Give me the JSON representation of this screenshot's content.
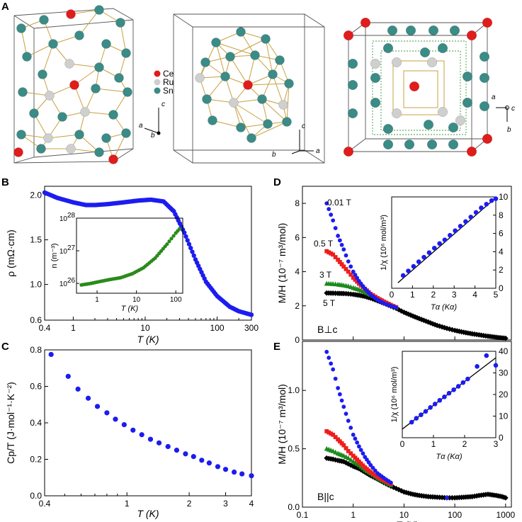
{
  "panels": {
    "A": {
      "letter": "A",
      "legend": [
        {
          "label": "Ce",
          "color": "#e01c1c"
        },
        {
          "label": "Ru",
          "color": "#cfcfcf"
        },
        {
          "label": "Sn",
          "color": "#3b8b86"
        }
      ],
      "axes_labels": {
        "a": "a",
        "b": "b",
        "c": "c"
      }
    },
    "B": {
      "letter": "B"
    },
    "C": {
      "letter": "C"
    },
    "D": {
      "letter": "D",
      "field_label": "B⊥c"
    },
    "E": {
      "letter": "E",
      "field_label": "B||c"
    }
  },
  "colors": {
    "blue": "#1c1cf0",
    "red": "#f01c1c",
    "green": "#1c8a1c",
    "black": "#000000",
    "olive": "#2a8a1a",
    "fit_line": "#000000"
  },
  "chart_data": [
    {
      "id": "B",
      "type": "scatter",
      "xscale": "log",
      "xlim": [
        0.4,
        300
      ],
      "ylim": [
        0.6,
        2.1
      ],
      "xticks": [
        "0.4",
        "1",
        "10",
        "100",
        "300"
      ],
      "yticks": [
        "0.6",
        "1.0",
        "1.5",
        "2.0"
      ],
      "xlabel": "T (K)",
      "ylabel": "ρ (mΩ·cm)",
      "series": [
        {
          "name": "rho",
          "color": "#1c1cf0",
          "x": [
            0.4,
            0.6,
            1.0,
            1.5,
            2,
            3,
            5,
            8,
            12,
            18,
            25,
            35,
            50,
            70,
            100,
            150,
            200,
            300
          ],
          "y": [
            2.03,
            1.97,
            1.92,
            1.89,
            1.89,
            1.9,
            1.92,
            1.94,
            1.95,
            1.93,
            1.82,
            1.58,
            1.28,
            1.03,
            0.87,
            0.75,
            0.7,
            0.66
          ]
        }
      ],
      "inset": {
        "xscale": "log",
        "yscale": "log",
        "xlim": [
          0.3,
          150
        ],
        "ylim": [
          5e+25,
          1e+28
        ],
        "xticks": [
          "1",
          "10",
          "100"
        ],
        "yticks": [
          "10",
          "10",
          "10"
        ],
        "ytick_exps": [
          "26",
          "27",
          "28"
        ],
        "xlabel": "T (K)",
        "ylabel": "n (m⁻³)",
        "series": [
          {
            "name": "n",
            "color": "#2a8a1a",
            "x": [
              0.4,
              0.7,
              1,
              2,
              4,
              8,
              15,
              30,
              60,
              100,
              140
            ],
            "y": [
              9e+25,
              1e+26,
              1.1e+26,
              1.3e+26,
              1.5e+26,
              2e+26,
              3e+26,
              6e+26,
              1.6e+27,
              3.5e+27,
              5.5e+27
            ]
          }
        ]
      }
    },
    {
      "id": "C",
      "type": "scatter",
      "xscale": "log",
      "xlim": [
        0.4,
        4
      ],
      "ylim": [
        0,
        0.8
      ],
      "xticks": [
        "0.4",
        "1",
        "2",
        "3",
        "4"
      ],
      "yticks": [
        "0.0",
        "0.2",
        "0.4",
        "0.6",
        "0.8"
      ],
      "xlabel": "T (K)",
      "ylabel": "Cp/T (J·mol⁻¹·K⁻²)",
      "series": [
        {
          "name": "C/T",
          "color": "#1c1cf0",
          "x": [
            0.43,
            0.52,
            0.58,
            0.65,
            0.72,
            0.8,
            0.88,
            0.97,
            1.07,
            1.18,
            1.3,
            1.43,
            1.58,
            1.74,
            1.92,
            2.1,
            2.3,
            2.5,
            2.75,
            3.0,
            3.3,
            3.6,
            4.0
          ],
          "y": [
            0.775,
            0.655,
            0.585,
            0.535,
            0.49,
            0.455,
            0.42,
            0.39,
            0.36,
            0.335,
            0.31,
            0.29,
            0.27,
            0.25,
            0.23,
            0.215,
            0.195,
            0.18,
            0.16,
            0.145,
            0.13,
            0.12,
            0.11
          ]
        }
      ]
    },
    {
      "id": "D",
      "type": "scatter",
      "xscale": "log",
      "xlim": [
        0.1,
        1300
      ],
      "ylim": [
        0,
        9
      ],
      "xticks": [],
      "yticks": [
        "0",
        "2",
        "4",
        "6",
        "8"
      ],
      "xlabel": "",
      "ylabel": "M/H (10⁻⁷ m³/mol)",
      "series": [
        {
          "name": "0.01 T",
          "color": "#1c1cf0",
          "marker": "circle",
          "x": [
            0.3,
            0.4,
            0.5,
            0.65,
            0.8,
            1.0,
            1.3,
            1.7,
            2.2,
            3,
            4,
            5.5,
            7
          ],
          "y": [
            8.0,
            7.0,
            6.1,
            5.3,
            4.6,
            4.0,
            3.45,
            3.0,
            2.65,
            2.35,
            2.15,
            2.0,
            1.9
          ]
        },
        {
          "name": "0.5 T",
          "color": "#f01c1c",
          "marker": "square",
          "x": [
            0.3,
            0.4,
            0.5,
            0.65,
            0.8,
            1.0,
            1.3,
            1.7,
            2.2,
            3,
            4,
            5.5,
            7
          ],
          "y": [
            5.2,
            5.0,
            4.7,
            4.3,
            4.0,
            3.65,
            3.3,
            3.0,
            2.7,
            2.45,
            2.25,
            2.05,
            1.92
          ]
        },
        {
          "name": "3 T",
          "color": "#1c8a1c",
          "marker": "triangle",
          "x": [
            0.3,
            0.4,
            0.5,
            0.65,
            0.8,
            1.0,
            1.3,
            1.7,
            2.2,
            3,
            4,
            5.5,
            7
          ],
          "y": [
            3.3,
            3.28,
            3.25,
            3.2,
            3.15,
            3.05,
            2.95,
            2.8,
            2.65,
            2.45,
            2.25,
            2.05,
            1.9
          ]
        },
        {
          "name": "5 T",
          "color": "#000000",
          "marker": "diamond",
          "x": [
            0.3,
            0.4,
            0.5,
            0.65,
            0.8,
            1.0,
            1.3,
            1.7,
            2.2,
            3,
            4,
            5.5,
            7,
            10,
            15,
            20,
            30,
            45,
            70,
            100,
            150,
            220,
            300,
            450,
            650,
            850,
            1000
          ],
          "y": [
            2.75,
            2.74,
            2.73,
            2.72,
            2.7,
            2.67,
            2.62,
            2.55,
            2.45,
            2.3,
            2.15,
            1.98,
            1.85,
            1.62,
            1.4,
            1.25,
            1.05,
            0.85,
            0.68,
            0.56,
            0.45,
            0.36,
            0.3,
            0.22,
            0.16,
            0.12,
            0.1
          ]
        }
      ],
      "legend_labels": [
        "0.01 T",
        "0.5 T",
        "3 T",
        "5 T"
      ],
      "inset": {
        "xlim": [
          0,
          5
        ],
        "ylim": [
          0,
          10
        ],
        "xticks": [
          "0",
          "1",
          "2",
          "3",
          "4",
          "5"
        ],
        "yticks": [
          "0",
          "2",
          "4",
          "6",
          "8",
          "10"
        ],
        "xlabel": "Tα (Kα)",
        "ylabel": "1/χ (10⁶ mol/m³)",
        "fit": {
          "x": [
            0.3,
            5.0
          ],
          "y": [
            0.6,
            9.9
          ]
        },
        "series": [
          {
            "name": "1/chi",
            "color": "#1c1cf0",
            "x": [
              0.55,
              0.8,
              1.05,
              1.3,
              1.55,
              1.8,
              2.05,
              2.3,
              2.55,
              2.8,
              3.05,
              3.3,
              3.55,
              3.8,
              4.05,
              4.3,
              4.55,
              4.8,
              5.0
            ],
            "y": [
              1.4,
              1.9,
              2.4,
              2.9,
              3.4,
              3.9,
              4.4,
              4.9,
              5.3,
              5.8,
              6.3,
              6.8,
              7.3,
              7.8,
              8.3,
              8.8,
              9.2,
              9.6,
              9.8
            ]
          }
        ]
      }
    },
    {
      "id": "E",
      "type": "scatter",
      "xscale": "log",
      "xlim": [
        0.1,
        1300
      ],
      "ylim": [
        0,
        1.42
      ],
      "xticks": [
        "0.1",
        "1",
        "10",
        "100",
        "1000"
      ],
      "yticks": [
        "0.0",
        "0.5",
        "1.0"
      ],
      "xlabel": "T (K)",
      "ylabel": "M/H (10⁻⁷ m³/mol)",
      "series": [
        {
          "name": "0.01 T",
          "color": "#1c1cf0",
          "marker": "circle",
          "x": [
            0.3,
            0.4,
            0.5,
            0.65,
            0.8,
            1.0,
            1.3,
            1.7,
            2.2,
            3,
            4,
            5.5,
            70
          ],
          "y": [
            1.33,
            1.18,
            1.02,
            0.86,
            0.74,
            0.62,
            0.52,
            0.43,
            0.36,
            0.29,
            0.25,
            0.21,
            0.08
          ]
        },
        {
          "name": "0.5 T",
          "color": "#f01c1c",
          "marker": "square",
          "x": [
            0.3,
            0.4,
            0.5,
            0.65,
            0.8,
            1.0,
            1.3,
            1.7,
            2.2,
            3,
            4,
            5.5
          ],
          "y": [
            0.65,
            0.62,
            0.58,
            0.53,
            0.48,
            0.44,
            0.39,
            0.34,
            0.3,
            0.26,
            0.23,
            0.2
          ]
        },
        {
          "name": "3 T",
          "color": "#1c8a1c",
          "marker": "triangle",
          "x": [
            0.3,
            0.4,
            0.5,
            0.65,
            0.8,
            1.0,
            1.3,
            1.7,
            2.2,
            3,
            4,
            5.5
          ],
          "y": [
            0.5,
            0.48,
            0.46,
            0.44,
            0.42,
            0.39,
            0.36,
            0.32,
            0.29,
            0.25,
            0.22,
            0.19
          ]
        },
        {
          "name": "5 T",
          "color": "#000000",
          "marker": "diamond",
          "x": [
            0.3,
            0.4,
            0.5,
            0.65,
            0.8,
            1.0,
            1.3,
            1.7,
            2.2,
            3,
            4,
            5.5,
            7,
            10,
            15,
            20,
            30,
            45,
            70,
            100,
            150,
            220,
            300,
            450,
            650,
            850,
            1000
          ],
          "y": [
            0.42,
            0.41,
            0.4,
            0.39,
            0.37,
            0.35,
            0.33,
            0.3,
            0.27,
            0.24,
            0.21,
            0.18,
            0.16,
            0.13,
            0.11,
            0.1,
            0.09,
            0.085,
            0.08,
            0.08,
            0.085,
            0.09,
            0.1,
            0.11,
            0.1,
            0.09,
            0.08
          ]
        }
      ],
      "inset": {
        "xlim": [
          0,
          3
        ],
        "ylim": [
          0,
          40
        ],
        "xticks": [
          "0",
          "1",
          "2",
          "3"
        ],
        "yticks": [
          "0",
          "10",
          "20",
          "30",
          "40"
        ],
        "xlabel": "Tα (Kα)",
        "ylabel": "1/χ (10⁶ mol/m³)",
        "fit": {
          "x": [
            0,
            3.0
          ],
          "y": [
            4.0,
            37.0
          ]
        },
        "series": [
          {
            "name": "1/chi",
            "color": "#1c1cf0",
            "x": [
              0.3,
              0.45,
              0.6,
              0.75,
              0.9,
              1.05,
              1.2,
              1.35,
              1.5,
              1.65,
              1.8,
              1.95,
              2.1,
              2.4,
              2.7,
              3.0
            ],
            "y": [
              7.2,
              9.0,
              10.6,
              12.2,
              14.0,
              15.6,
              17.3,
              18.9,
              20.6,
              22.2,
              23.8,
              25.5,
              27.2,
              33.0,
              38.0,
              33.5
            ]
          }
        ]
      }
    }
  ]
}
